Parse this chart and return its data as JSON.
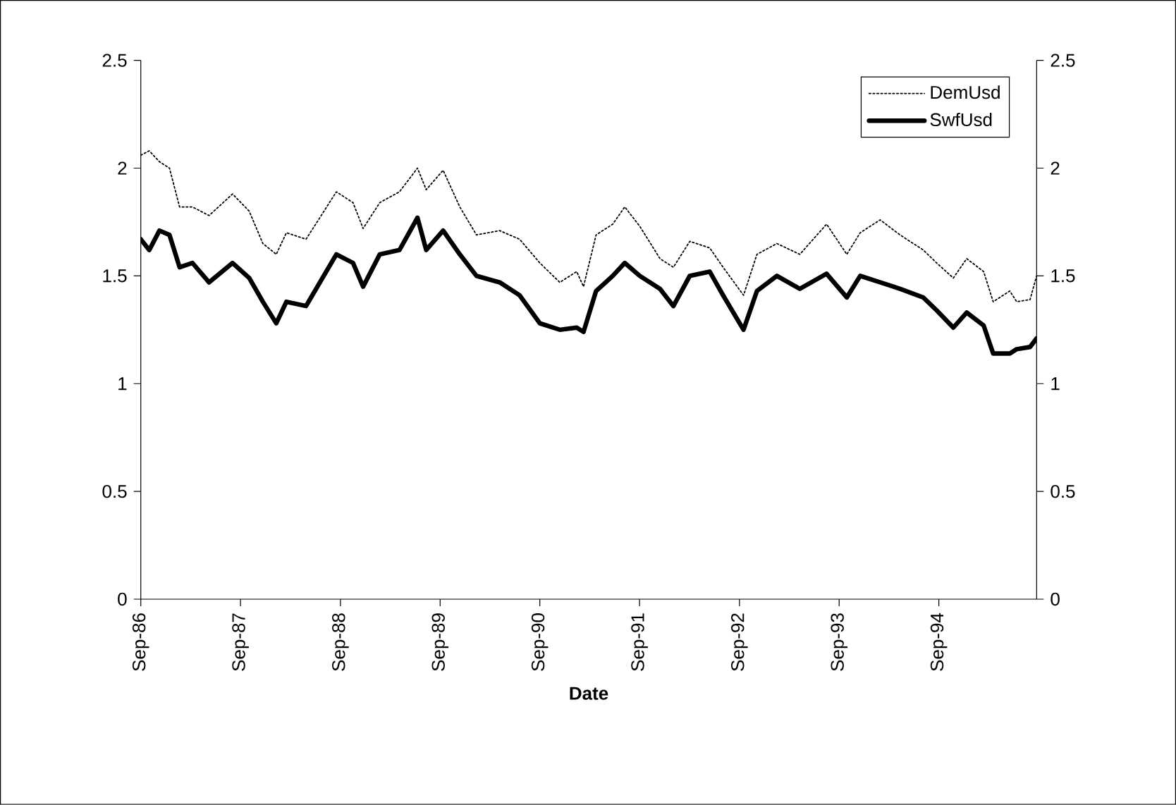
{
  "chart_data": {
    "type": "line",
    "xlabel": "Date",
    "x": [
      "1986-09-01",
      "1986-10-02",
      "1986-11-08",
      "1986-12-15",
      "1987-01-21",
      "1987-03-09",
      "1987-05-09",
      "1987-08-03",
      "1987-10-03",
      "1987-11-22",
      "1988-01-10",
      "1988-02-16",
      "1988-04-28",
      "1988-08-17",
      "1988-10-17",
      "1988-11-23",
      "1989-01-23",
      "1989-04-05",
      "1989-06-10",
      "1989-07-12",
      "1989-09-12",
      "1989-11-12",
      "1990-01-12",
      "1990-04-07",
      "1990-06-19",
      "1990-09-01",
      "1990-11-13",
      "1991-01-14",
      "1991-02-08",
      "1991-03-26",
      "1991-05-26",
      "1991-07-09",
      "1991-09-02",
      "1991-11-15",
      "1992-01-03",
      "1992-03-03",
      "1992-05-15",
      "1992-07-03",
      "1992-09-16",
      "1992-11-04",
      "1993-01-16",
      "1993-04-10",
      "1993-07-17",
      "1993-09-29",
      "1993-11-17",
      "1994-01-29",
      "1994-04-12",
      "1994-07-06",
      "1994-08-24",
      "1994-10-24",
      "1994-12-12",
      "1995-02-12",
      "1995-03-19",
      "1995-05-19",
      "1995-06-13",
      "1995-08-01",
      "1995-08-25"
    ],
    "series": [
      {
        "name": "DemUsd",
        "color": "#000000",
        "line_style": "dotted",
        "values": [
          2.06,
          2.08,
          2.03,
          2.0,
          1.82,
          1.82,
          1.78,
          1.88,
          1.8,
          1.65,
          1.6,
          1.7,
          1.67,
          1.89,
          1.84,
          1.72,
          1.84,
          1.89,
          2.0,
          1.9,
          1.99,
          1.82,
          1.69,
          1.71,
          1.67,
          1.56,
          1.47,
          1.52,
          1.45,
          1.69,
          1.74,
          1.82,
          1.73,
          1.58,
          1.54,
          1.66,
          1.63,
          1.54,
          1.41,
          1.6,
          1.65,
          1.6,
          1.74,
          1.6,
          1.7,
          1.76,
          1.69,
          1.62,
          1.56,
          1.49,
          1.58,
          1.52,
          1.38,
          1.43,
          1.38,
          1.39,
          1.5
        ]
      },
      {
        "name": "SwfUsd",
        "color": "#000000",
        "line_style": "solid",
        "values": [
          1.67,
          1.62,
          1.71,
          1.69,
          1.54,
          1.56,
          1.47,
          1.56,
          1.49,
          1.38,
          1.28,
          1.38,
          1.36,
          1.6,
          1.56,
          1.45,
          1.6,
          1.62,
          1.77,
          1.62,
          1.71,
          1.6,
          1.5,
          1.47,
          1.41,
          1.28,
          1.25,
          1.26,
          1.24,
          1.43,
          1.5,
          1.56,
          1.5,
          1.44,
          1.36,
          1.5,
          1.52,
          1.41,
          1.25,
          1.43,
          1.5,
          1.44,
          1.51,
          1.4,
          1.5,
          1.47,
          1.44,
          1.4,
          1.34,
          1.26,
          1.33,
          1.27,
          1.14,
          1.14,
          1.16,
          1.17,
          1.21
        ]
      }
    ],
    "xlim": [
      "1986-09-01",
      "1995-08-25"
    ],
    "xticks": [
      {
        "value": "1986-09-01",
        "label": "Sep-86"
      },
      {
        "value": "1987-09-01",
        "label": "Sep-87"
      },
      {
        "value": "1988-09-01",
        "label": "Sep-88"
      },
      {
        "value": "1989-09-01",
        "label": "Sep-89"
      },
      {
        "value": "1990-09-01",
        "label": "Sep-90"
      },
      {
        "value": "1991-09-01",
        "label": "Sep-91"
      },
      {
        "value": "1992-09-01",
        "label": "Sep-92"
      },
      {
        "value": "1993-09-01",
        "label": "Sep-93"
      },
      {
        "value": "1994-09-01",
        "label": "Sep-94"
      }
    ],
    "ylim": [
      0,
      2.5
    ],
    "yticks": [
      0,
      0.5,
      1,
      1.5,
      2,
      2.5
    ],
    "y2lim": [
      0,
      2.5
    ],
    "y2ticks": [
      0,
      0.5,
      1,
      1.5,
      2,
      2.5
    ],
    "legend": "top right"
  }
}
